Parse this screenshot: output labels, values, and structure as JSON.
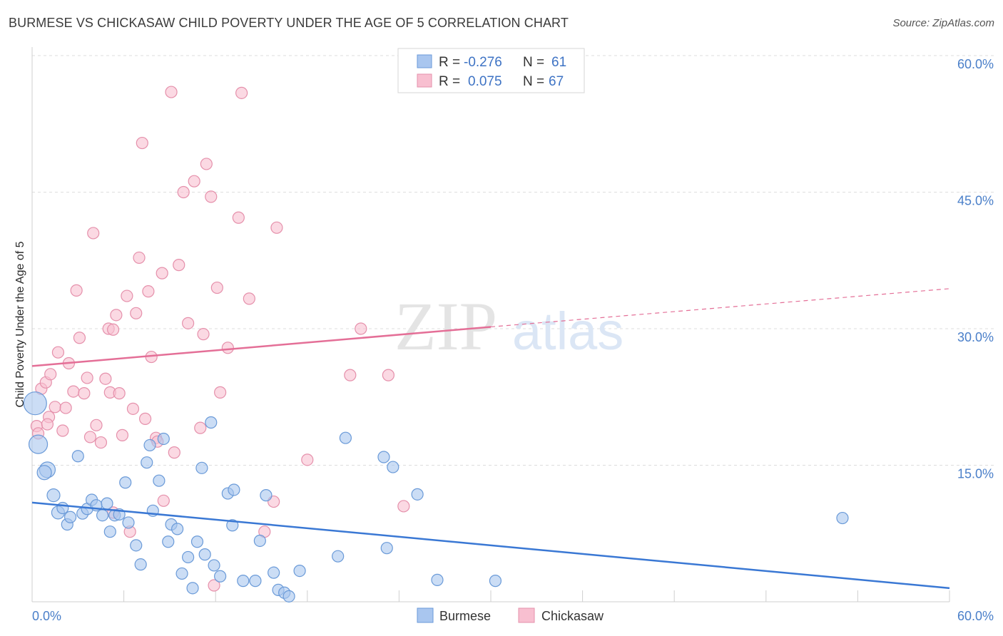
{
  "title": "BURMESE VS CHICKASAW CHILD POVERTY UNDER THE AGE OF 5 CORRELATION CHART",
  "source": "Source: ZipAtlas.com",
  "watermark": {
    "zip": "ZIP",
    "atlas": "atlas"
  },
  "legend": {
    "rows": [
      {
        "r_label": "R =",
        "r_value": "-0.276",
        "n_label": "N =",
        "n_value": "61",
        "color": "#a9c6ef",
        "stroke": "#6a9ad8"
      },
      {
        "r_label": "R =",
        "r_value": "0.075",
        "n_label": "N =",
        "n_value": "67",
        "color": "#f8bfd0",
        "stroke": "#e590ab"
      }
    ]
  },
  "bottom_legend": [
    {
      "label": "Burmese",
      "color": "#a9c6ef",
      "stroke": "#6a9ad8"
    },
    {
      "label": "Chickasaw",
      "color": "#f8bfd0",
      "stroke": "#e590ab"
    }
  ],
  "chart_data": {
    "type": "scatter",
    "ylabel": "Child Poverty Under the Age of 5",
    "xlim": [
      0,
      60
    ],
    "ylim": [
      0,
      60
    ],
    "x_tick_labels": [
      {
        "value": 0,
        "label": "0.0%"
      },
      {
        "value": 60,
        "label": "60.0%"
      }
    ],
    "y_tick_labels": [
      {
        "value": 15,
        "label": "15.0%"
      },
      {
        "value": 30,
        "label": "30.0%"
      },
      {
        "value": 45,
        "label": "45.0%"
      },
      {
        "value": 60,
        "label": "60.0%"
      }
    ],
    "grid": true,
    "series": [
      {
        "name": "Burmese",
        "color": "#a9c6ef",
        "stroke": "#6a9ad8",
        "trend": {
          "x0": 0,
          "y0": 10.9,
          "x1": 60,
          "y1": 1.5,
          "color": "#3a78d4"
        },
        "points": [
          [
            0.2,
            21.8,
            16
          ],
          [
            0.4,
            17.3,
            13
          ],
          [
            1.0,
            14.5,
            11
          ],
          [
            0.8,
            14.2,
            10
          ],
          [
            1.4,
            11.7,
            9
          ],
          [
            1.7,
            9.8,
            9
          ],
          [
            2.0,
            10.3,
            8
          ],
          [
            2.3,
            8.5,
            8
          ],
          [
            2.5,
            9.3,
            8
          ],
          [
            3.0,
            16.0,
            8
          ],
          [
            3.3,
            9.7,
            8
          ],
          [
            3.6,
            10.2,
            8
          ],
          [
            3.9,
            11.2,
            8
          ],
          [
            4.2,
            10.6,
            8
          ],
          [
            4.6,
            9.5,
            8
          ],
          [
            4.9,
            10.8,
            8
          ],
          [
            5.1,
            7.7,
            8
          ],
          [
            5.4,
            9.5,
            8
          ],
          [
            5.7,
            9.6,
            8
          ],
          [
            6.1,
            13.1,
            8
          ],
          [
            6.3,
            8.7,
            8
          ],
          [
            6.8,
            6.2,
            8
          ],
          [
            7.1,
            4.1,
            8
          ],
          [
            7.5,
            15.3,
            8
          ],
          [
            7.7,
            17.2,
            8
          ],
          [
            7.9,
            10.0,
            8
          ],
          [
            8.3,
            13.3,
            8
          ],
          [
            8.6,
            17.9,
            8
          ],
          [
            8.9,
            6.6,
            8
          ],
          [
            9.1,
            8.5,
            8
          ],
          [
            9.5,
            8.0,
            8
          ],
          [
            9.8,
            3.1,
            8
          ],
          [
            10.2,
            4.9,
            8
          ],
          [
            10.5,
            1.5,
            8
          ],
          [
            10.8,
            6.6,
            8
          ],
          [
            11.1,
            14.7,
            8
          ],
          [
            11.3,
            5.2,
            8
          ],
          [
            11.7,
            19.7,
            8
          ],
          [
            11.9,
            4.0,
            8
          ],
          [
            12.3,
            2.8,
            8
          ],
          [
            12.8,
            11.9,
            8
          ],
          [
            13.2,
            12.3,
            8
          ],
          [
            13.1,
            8.4,
            8
          ],
          [
            13.8,
            2.3,
            8
          ],
          [
            14.6,
            2.3,
            8
          ],
          [
            14.9,
            6.7,
            8
          ],
          [
            15.3,
            11.7,
            8
          ],
          [
            15.8,
            3.2,
            8
          ],
          [
            16.1,
            1.3,
            8
          ],
          [
            16.5,
            1.0,
            8
          ],
          [
            16.8,
            0.6,
            8
          ],
          [
            17.5,
            3.4,
            8
          ],
          [
            20.0,
            5.0,
            8
          ],
          [
            20.5,
            18.0,
            8
          ],
          [
            23.0,
            15.9,
            8
          ],
          [
            23.2,
            5.9,
            8
          ],
          [
            23.6,
            14.8,
            8
          ],
          [
            25.2,
            11.8,
            8
          ],
          [
            26.5,
            2.4,
            8
          ],
          [
            30.3,
            2.3,
            8
          ],
          [
            53.0,
            9.2,
            8
          ]
        ]
      },
      {
        "name": "Chickasaw",
        "color": "#f8bfd0",
        "stroke": "#e590ab",
        "trend": {
          "x0": 0,
          "y0": 25.9,
          "x1": 30,
          "y1": 30.2,
          "x2": 60,
          "y2": 34.4,
          "color": "#e46f97"
        },
        "points": [
          [
            0.3,
            19.3,
            8
          ],
          [
            0.4,
            18.5,
            8
          ],
          [
            0.6,
            23.4,
            8
          ],
          [
            0.9,
            24.1,
            8
          ],
          [
            1.1,
            20.3,
            8
          ],
          [
            1.2,
            25.0,
            8
          ],
          [
            1.5,
            21.4,
            8
          ],
          [
            1.7,
            27.4,
            8
          ],
          [
            2.0,
            18.8,
            8
          ],
          [
            2.2,
            21.3,
            8
          ],
          [
            2.4,
            26.2,
            8
          ],
          [
            2.7,
            23.1,
            8
          ],
          [
            2.9,
            34.2,
            8
          ],
          [
            3.1,
            29.0,
            8
          ],
          [
            3.4,
            22.9,
            8
          ],
          [
            3.6,
            24.6,
            8
          ],
          [
            3.8,
            18.1,
            8
          ],
          [
            4.0,
            40.5,
            8
          ],
          [
            4.2,
            19.4,
            8
          ],
          [
            4.5,
            17.5,
            8
          ],
          [
            4.8,
            24.5,
            8
          ],
          [
            5.0,
            30.0,
            8
          ],
          [
            5.1,
            23.0,
            8
          ],
          [
            5.3,
            29.9,
            8
          ],
          [
            5.5,
            31.5,
            8
          ],
          [
            5.7,
            22.9,
            8
          ],
          [
            5.9,
            18.3,
            8
          ],
          [
            6.2,
            33.6,
            8
          ],
          [
            6.4,
            7.7,
            8
          ],
          [
            6.6,
            21.2,
            8
          ],
          [
            6.8,
            31.7,
            8
          ],
          [
            7.0,
            37.8,
            8
          ],
          [
            7.2,
            50.4,
            8
          ],
          [
            7.4,
            20.1,
            8
          ],
          [
            7.6,
            34.1,
            8
          ],
          [
            7.8,
            26.9,
            8
          ],
          [
            8.1,
            18.0,
            8
          ],
          [
            8.2,
            17.6,
            8
          ],
          [
            8.5,
            36.1,
            8
          ],
          [
            8.6,
            11.1,
            8
          ],
          [
            9.1,
            56.0,
            8
          ],
          [
            9.3,
            16.4,
            8
          ],
          [
            9.6,
            37.0,
            8
          ],
          [
            9.9,
            45.0,
            8
          ],
          [
            10.2,
            30.6,
            8
          ],
          [
            10.6,
            46.2,
            8
          ],
          [
            11.0,
            19.1,
            8
          ],
          [
            11.2,
            29.4,
            8
          ],
          [
            11.4,
            48.1,
            8
          ],
          [
            11.7,
            44.5,
            8
          ],
          [
            11.9,
            1.8,
            8
          ],
          [
            12.1,
            34.5,
            8
          ],
          [
            12.3,
            23.0,
            8
          ],
          [
            12.8,
            27.9,
            8
          ],
          [
            13.5,
            42.2,
            8
          ],
          [
            13.7,
            55.9,
            8
          ],
          [
            14.2,
            33.3,
            8
          ],
          [
            15.2,
            7.7,
            8
          ],
          [
            15.8,
            11.0,
            8
          ],
          [
            16.0,
            41.1,
            8
          ],
          [
            18.0,
            15.6,
            8
          ],
          [
            20.8,
            24.9,
            8
          ],
          [
            21.5,
            30.0,
            8
          ],
          [
            23.3,
            24.9,
            8
          ],
          [
            24.3,
            10.5,
            8
          ],
          [
            5.3,
            9.8,
            8
          ],
          [
            1.0,
            19.5,
            8
          ]
        ]
      }
    ]
  }
}
